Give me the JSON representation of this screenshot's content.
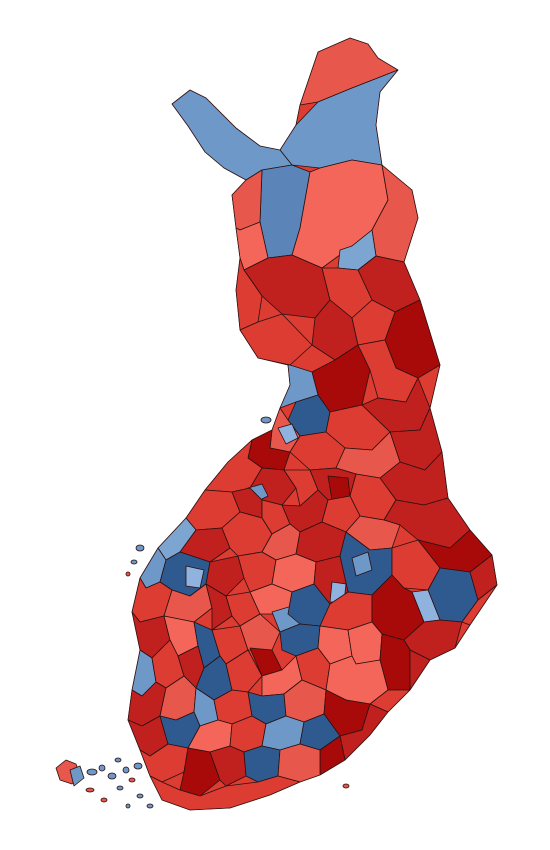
{
  "map": {
    "colors": {
      "red_light": "#f4665a",
      "red_mid": "#dc3c32",
      "red_dark": "#c0201e",
      "red_deep": "#a80a0a",
      "blue_light": "#8fb3de",
      "blue_mid": "#6e98c8",
      "blue_dark": "#2f5a90",
      "blue_deep": "#1f4478",
      "outline": "#2a1010",
      "background": "#ffffff"
    }
  }
}
